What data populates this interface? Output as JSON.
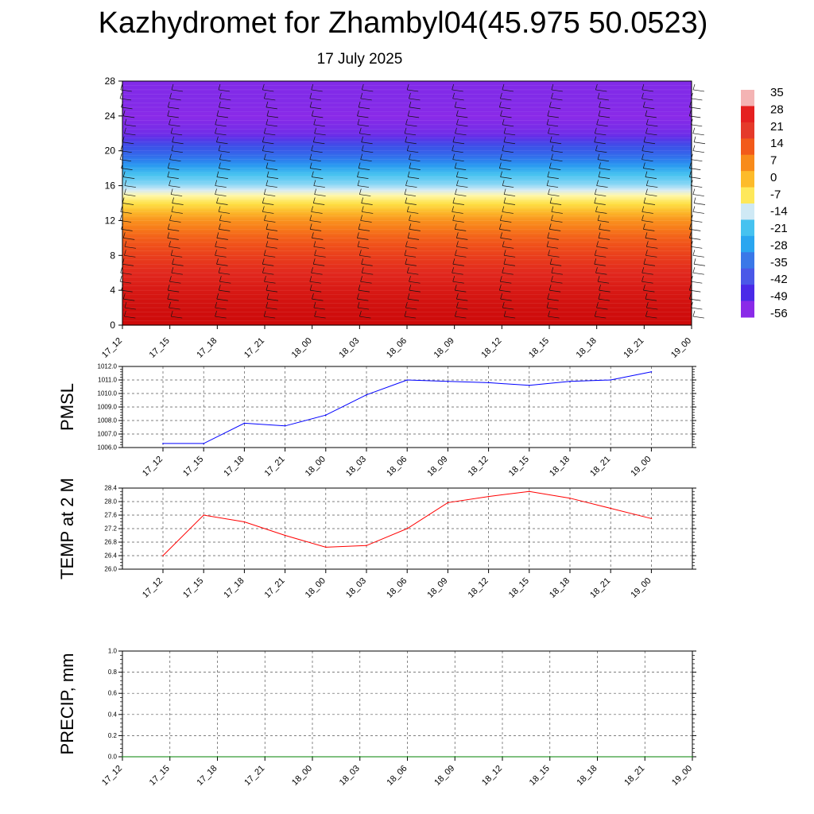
{
  "title": "Kazhydromet for Zhambyl04(45.975 50.0523)",
  "subtitle": "17 July 2025",
  "time_labels": [
    "17_12",
    "17_15",
    "17_18",
    "17_21",
    "18_00",
    "18_03",
    "18_06",
    "18_09",
    "18_12",
    "18_15",
    "18_18",
    "18_21",
    "19_00"
  ],
  "chart_data": [
    {
      "type": "heatmap",
      "name": "vertical-profile",
      "x": [
        "17_12",
        "17_15",
        "17_18",
        "17_21",
        "18_00",
        "18_03",
        "18_06",
        "18_09",
        "18_12",
        "18_15",
        "18_18",
        "18_21",
        "19_00"
      ],
      "y_ticks": [
        0,
        4,
        8,
        12,
        16,
        20,
        24,
        28
      ],
      "ylim": [
        0,
        28
      ],
      "levels": [
        0,
        2,
        4,
        6,
        8,
        10,
        12,
        14,
        16,
        18,
        20,
        22,
        24,
        26,
        28
      ],
      "profile_values": [
        28,
        27,
        25,
        22,
        18,
        13,
        6,
        -5,
        -18,
        -30,
        -44,
        -54,
        -57,
        -56,
        -56
      ],
      "colorbar_labels": [
        "35",
        "28",
        "21",
        "14",
        "7",
        "0",
        "-7",
        "-14",
        "-21",
        "-28",
        "-35",
        "-42",
        "-49",
        "-56"
      ],
      "colorbar_colors": [
        "#f4b4b4",
        "#e52020",
        "#e53a2a",
        "#f25a1a",
        "#f88b1a",
        "#fdbb2a",
        "#fee85a",
        "#cfe9f5",
        "#46c2f0",
        "#2aa6f0",
        "#3a78e8",
        "#4a58e8",
        "#4a2ae8",
        "#8a2ae8"
      ]
    },
    {
      "type": "line",
      "name": "pmsl",
      "ylabel": "PMSL",
      "x": [
        "17_12",
        "17_15",
        "17_18",
        "17_21",
        "18_00",
        "18_03",
        "18_06",
        "18_09",
        "18_12",
        "18_15",
        "18_18",
        "18_21",
        "19_00"
      ],
      "values": [
        1006.3,
        1006.3,
        1007.8,
        1007.6,
        1008.4,
        1009.9,
        1011.0,
        1010.9,
        1010.8,
        1010.6,
        1010.9,
        1011.0,
        1011.6
      ],
      "ylim": [
        1006.0,
        1012.0
      ],
      "y_ticks": [
        "1006.0",
        "1007.0",
        "1008.0",
        "1009.0",
        "1010.0",
        "1011.0",
        "1012.0"
      ],
      "color": "#0000ff",
      "grid": true
    },
    {
      "type": "line",
      "name": "temp2m",
      "ylabel": "TEMP at 2 M",
      "x": [
        "17_12",
        "17_15",
        "17_18",
        "17_21",
        "18_00",
        "18_03",
        "18_06",
        "18_09",
        "18_12",
        "18_15",
        "18_18",
        "18_21",
        "19_00"
      ],
      "values": [
        26.4,
        27.6,
        27.4,
        27.0,
        26.65,
        26.7,
        27.2,
        27.97,
        28.15,
        28.3,
        28.1,
        27.8,
        27.5
      ],
      "ylim": [
        26.0,
        28.4
      ],
      "y_ticks": [
        "26.0",
        "26.4",
        "26.8",
        "27.2",
        "27.6",
        "28.0",
        "28.4"
      ],
      "color": "#ff0000",
      "grid": true
    },
    {
      "type": "line",
      "name": "precip",
      "ylabel": "PRECIP, mm",
      "x": [
        "17_12",
        "17_15",
        "17_18",
        "17_21",
        "18_00",
        "18_03",
        "18_06",
        "18_09",
        "18_12",
        "18_15",
        "18_18",
        "18_21",
        "19_00"
      ],
      "values": [
        0,
        0,
        0,
        0,
        0,
        0,
        0,
        0,
        0,
        0,
        0,
        0,
        0
      ],
      "ylim": [
        0.0,
        1.0
      ],
      "y_ticks": [
        "0.0",
        "0.2",
        "0.4",
        "0.6",
        "0.8",
        "1.0"
      ],
      "color": "#008000",
      "grid": true
    }
  ]
}
